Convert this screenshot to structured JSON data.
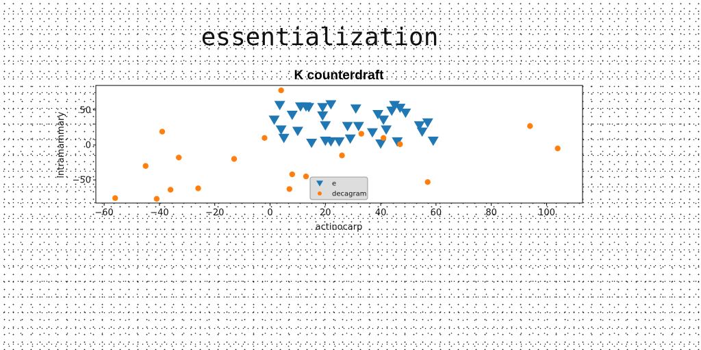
{
  "page_title": "essentialization",
  "chart_data": {
    "type": "scatter",
    "title": "K counterdraft",
    "xlabel": "actinocarp",
    "ylabel": "intramammary",
    "xlim": [
      -63,
      113
    ],
    "ylim": [
      -83,
      85
    ],
    "xticks": [
      -60,
      -40,
      -20,
      0,
      20,
      40,
      60,
      80,
      100
    ],
    "yticks": [
      -50,
      0,
      50
    ],
    "legend_position": "lower-center",
    "grid": false,
    "series": [
      {
        "name": "e",
        "marker": "triangle-down",
        "color": "#1f77b4",
        "points": [
          [
            3.5,
            57
          ],
          [
            8,
            43
          ],
          [
            11,
            55
          ],
          [
            14,
            54
          ],
          [
            19,
            54
          ],
          [
            22,
            58
          ],
          [
            1.5,
            36
          ],
          [
            4,
            22
          ],
          [
            5,
            10
          ],
          [
            10,
            20
          ],
          [
            15,
            3
          ],
          [
            19,
            42
          ],
          [
            20,
            28
          ],
          [
            20,
            6
          ],
          [
            22,
            5
          ],
          [
            25,
            5
          ],
          [
            28,
            27
          ],
          [
            29,
            9
          ],
          [
            31,
            52
          ],
          [
            32,
            27
          ],
          [
            37,
            18
          ],
          [
            39,
            44
          ],
          [
            40,
            2
          ],
          [
            41,
            36
          ],
          [
            42,
            22
          ],
          [
            44,
            49
          ],
          [
            45,
            57
          ],
          [
            46,
            5
          ],
          [
            47,
            53
          ],
          [
            49,
            46
          ],
          [
            54,
            28
          ],
          [
            55,
            19
          ],
          [
            57,
            32
          ],
          [
            59,
            6
          ],
          [
            13,
            55
          ]
        ]
      },
      {
        "name": "decagram",
        "marker": "circle",
        "color": "#ff7f0e",
        "points": [
          [
            4,
            78
          ],
          [
            -39,
            19
          ],
          [
            -2,
            10
          ],
          [
            -33,
            -18
          ],
          [
            -13,
            -20
          ],
          [
            -45,
            -30
          ],
          [
            8,
            -42
          ],
          [
            13,
            -45
          ],
          [
            -36,
            -64
          ],
          [
            -26,
            -62
          ],
          [
            -56,
            -76
          ],
          [
            -41,
            -77
          ],
          [
            7,
            -63
          ],
          [
            26,
            -15
          ],
          [
            33,
            16
          ],
          [
            41,
            10
          ],
          [
            47,
            1
          ],
          [
            57,
            -53
          ],
          [
            94,
            27
          ],
          [
            104,
            -5
          ]
        ]
      }
    ]
  }
}
